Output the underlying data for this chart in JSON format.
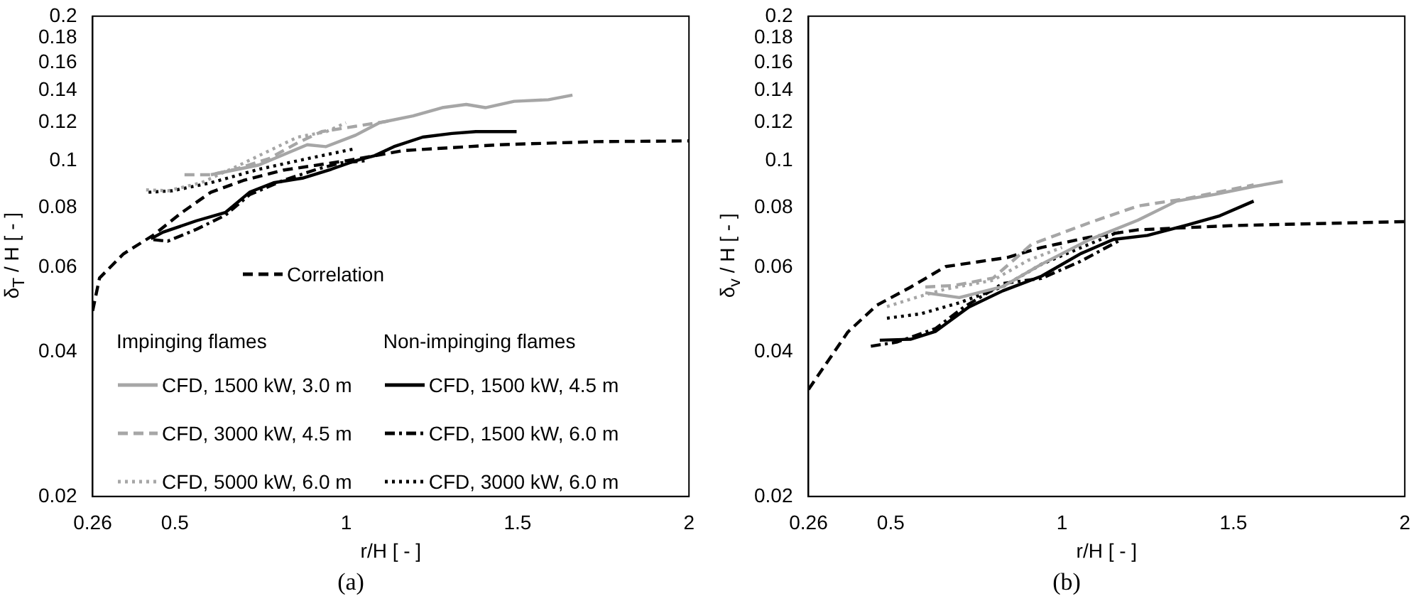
{
  "chart_data": [
    {
      "type": "line",
      "ylabel": "δ$_{T}$ / H [ - ]",
      "xlabel": "r/H [ - ]",
      "log": "y",
      "grid": false,
      "legend": "bottom",
      "xlim": [
        0.26,
        2
      ],
      "xticks": [
        0.26,
        0.5,
        1,
        1.5,
        2
      ],
      "ylim": [
        0.02,
        0.2
      ],
      "yticks": [
        0.02,
        0.04,
        0.06,
        0.08,
        0.1,
        0.12,
        0.14,
        0.16,
        0.18,
        0.2
      ],
      "annotations": [
        "Impinging flames",
        "Non-impinging flames",
        "(a)"
      ],
      "series": [
        {
          "name": "CFD, 1500 kW, 3.0 m",
          "color": "#a6a6a6",
          "line_style": "solid",
          "x": [
            0.605,
            0.745,
            0.886,
            0.94,
            1.027,
            1.097,
            1.195,
            1.28,
            1.35,
            1.406,
            1.49,
            1.59,
            1.66
          ],
          "values": [
            0.0935,
            0.098,
            0.108,
            0.107,
            0.113,
            0.12,
            0.124,
            0.129,
            0.131,
            0.129,
            0.133,
            0.134,
            0.137
          ]
        },
        {
          "name": "CFD, 3000 kW, 4.5 m",
          "color": "#a6a6a6",
          "line_style": "dashed",
          "x": [
            0.528,
            0.605,
            0.676,
            0.774,
            0.858,
            0.928,
            1.027,
            1.125
          ],
          "values": [
            0.0935,
            0.0935,
            0.096,
            0.101,
            0.109,
            0.115,
            0.118,
            0.121
          ]
        },
        {
          "name": "CFD, 5000 kW, 6.0 m",
          "color": "#a6a6a6",
          "line_style": "dotted",
          "x": [
            0.416,
            0.48,
            0.577,
            0.676,
            0.788,
            0.858,
            0.942,
            0.999
          ],
          "values": [
            0.087,
            0.0866,
            0.09,
            0.097,
            0.106,
            0.112,
            0.115,
            0.12
          ]
        },
        {
          "name": "CFD, 1500 kW, 4.5 m",
          "color": "#000000",
          "line_style": "solid",
          "x": [
            0.43,
            0.465,
            0.563,
            0.647,
            0.718,
            0.788,
            0.872,
            0.956,
            1.027,
            1.083,
            1.139,
            1.223,
            1.308,
            1.378,
            1.497
          ],
          "values": [
            0.0688,
            0.071,
            0.075,
            0.078,
            0.086,
            0.09,
            0.092,
            0.096,
            0.1,
            0.1025,
            0.107,
            0.112,
            0.114,
            0.115,
            0.115
          ]
        },
        {
          "name": "CFD, 1500 kW, 6.0 m",
          "color": "#000000",
          "line_style": "dashdot",
          "x": [
            0.437,
            0.479,
            0.563,
            0.647,
            0.718,
            0.816,
            0.914,
            0.985,
            1.055
          ],
          "values": [
            0.0685,
            0.068,
            0.072,
            0.077,
            0.085,
            0.091,
            0.096,
            0.099,
            0.1
          ]
        },
        {
          "name": "CFD, 3000 kW, 6.0 m",
          "color": "#000000",
          "line_style": "dotted",
          "x": [
            0.423,
            0.493,
            0.605,
            0.745,
            0.886,
            1.027
          ],
          "values": [
            0.086,
            0.0866,
            0.09,
            0.096,
            0.101,
            0.106
          ]
        },
        {
          "name": "Correlation",
          "color": "#000000",
          "line_style": "dashed",
          "x": [
            0.26,
            0.28,
            0.35,
            0.437,
            0.52,
            0.605,
            0.7,
            0.816,
            1.0,
            1.167,
            1.448,
            1.73,
            2.0
          ],
          "values": [
            0.0487,
            0.057,
            0.064,
            0.07,
            0.078,
            0.086,
            0.091,
            0.0956,
            0.1,
            0.105,
            0.108,
            0.1096,
            0.11
          ]
        }
      ]
    },
    {
      "type": "line",
      "ylabel": "δ$_{v}$ / H [ - ]",
      "xlabel": "r/H [ - ]",
      "log": "y",
      "grid": false,
      "xlim": [
        0.26,
        2
      ],
      "xticks": [
        0.26,
        0.5,
        1,
        1.5,
        2
      ],
      "ylim": [
        0.02,
        0.2
      ],
      "yticks": [
        0.02,
        0.04,
        0.06,
        0.08,
        0.1,
        0.12,
        0.14,
        0.16,
        0.18,
        0.2
      ],
      "annotations": [
        "(b)"
      ],
      "series": [
        {
          "color": "#a6a6a6",
          "line_style": "solid",
          "x": [
            0.601,
            0.7,
            0.827,
            0.94,
            1.08,
            1.221,
            1.334,
            1.446,
            1.559,
            1.644
          ],
          "values": [
            0.0531,
            0.0519,
            0.0547,
            0.0609,
            0.0685,
            0.0752,
            0.0824,
            0.0851,
            0.0884,
            0.0906
          ]
        },
        {
          "color": "#a6a6a6",
          "line_style": "dashed",
          "x": [
            0.601,
            0.686,
            0.799,
            0.911,
            1.08,
            1.221,
            1.362,
            1.559
          ],
          "values": [
            0.0546,
            0.055,
            0.057,
            0.067,
            0.0743,
            0.0805,
            0.0834,
            0.0891
          ]
        },
        {
          "color": "#a6a6a6",
          "line_style": "dotted",
          "x": [
            0.489,
            0.573,
            0.658,
            0.799,
            0.9,
            1.0
          ],
          "values": [
            0.0497,
            0.0519,
            0.054,
            0.0564,
            0.062,
            0.066
          ]
        },
        {
          "color": "#000000",
          "line_style": "solid",
          "x": [
            0.468,
            0.559,
            0.63,
            0.728,
            0.827,
            0.94,
            1.053,
            1.15,
            1.249,
            1.362,
            1.46,
            1.559
          ],
          "values": [
            0.0423,
            0.0425,
            0.0441,
            0.0496,
            0.0536,
            0.0575,
            0.064,
            0.0686,
            0.0699,
            0.0734,
            0.0768,
            0.0824
          ]
        },
        {
          "color": "#000000",
          "line_style": "dashdot",
          "x": [
            0.442,
            0.517,
            0.63,
            0.714,
            0.827,
            0.94,
            1.053,
            1.172
          ],
          "values": [
            0.0411,
            0.0419,
            0.0447,
            0.0496,
            0.0555,
            0.0569,
            0.0617,
            0.0685
          ]
        },
        {
          "color": "#000000",
          "line_style": "dotted",
          "x": [
            0.489,
            0.587,
            0.7,
            0.827,
            0.94,
            1.165
          ],
          "values": [
            0.047,
            0.048,
            0.0506,
            0.0547,
            0.0609,
            0.0711
          ]
        },
        {
          "color": "#000000",
          "line_style": "dashed",
          "x": [
            0.26,
            0.375,
            0.459,
            0.557,
            0.66,
            0.841,
            0.94,
            1.08,
            1.22,
            1.5,
            2.0
          ],
          "values": [
            0.0334,
            0.044,
            0.05,
            0.0545,
            0.0602,
            0.0629,
            0.066,
            0.0693,
            0.0718,
            0.0733,
            0.0747
          ]
        }
      ]
    }
  ]
}
